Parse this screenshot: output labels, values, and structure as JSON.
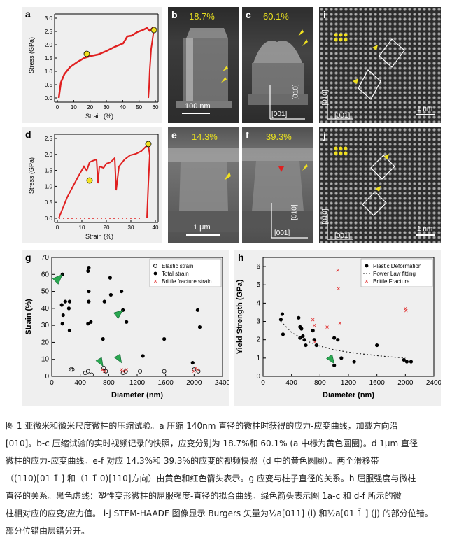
{
  "panels": {
    "a": {
      "label": "a",
      "xlabel": "Strain (%)",
      "ylabel": "Stress (GPa)",
      "xticks": [
        "0",
        "10",
        "20",
        "30",
        "40",
        "50",
        "60"
      ],
      "yticks": [
        "0.0",
        "0.5",
        "1.0",
        "1.5",
        "2.0",
        "2.5",
        "3.0"
      ]
    },
    "b": {
      "label": "b",
      "strain": "18.7%",
      "scale": "100 nm"
    },
    "c": {
      "label": "c",
      "strain": "60.1%",
      "axis_v": "[010]",
      "axis_h": "[001]"
    },
    "i": {
      "label": "i",
      "axis_v": "[010]",
      "axis_h": "[001]",
      "scale": "1 nm"
    },
    "d": {
      "label": "d",
      "xlabel": "Strain (%)",
      "ylabel": "Stress (GPa)",
      "xticks": [
        "0",
        "10",
        "20",
        "30",
        "40"
      ],
      "yticks": [
        "0.0",
        "0.5",
        "1.0",
        "1.5",
        "2.0",
        "2.5"
      ]
    },
    "e": {
      "label": "e",
      "strain": "14.3%",
      "scale": "1 μm"
    },
    "f": {
      "label": "f",
      "strain": "39.3%",
      "axis_v": "[010]",
      "axis_h": "[001]"
    },
    "j": {
      "label": "j",
      "axis_v": "[010]",
      "axis_h": "[001]",
      "scale": "1 nm"
    },
    "g": {
      "label": "g"
    },
    "h": {
      "label": "h"
    }
  },
  "chart_data": [
    {
      "id": "g",
      "type": "scatter",
      "title": "",
      "xlabel": "Diameter (nm)",
      "ylabel": "Strain (%)",
      "xlim": [
        0,
        2400
      ],
      "ylim": [
        0,
        70
      ],
      "xticks": [
        "0",
        "400",
        "800",
        "1200",
        "1600",
        "2000",
        "2400"
      ],
      "yticks": [
        "0",
        "10",
        "20",
        "30",
        "40",
        "50",
        "60",
        "70"
      ],
      "legend": {
        "position": "top-right",
        "entries": [
          "Elastic strain",
          "Total strain",
          "Brittle fracture strain"
        ]
      },
      "series": [
        {
          "name": "Total strain",
          "marker": "filled-circle",
          "points": [
            [
              150,
              60
            ],
            [
              140,
              42
            ],
            [
              160,
              36
            ],
            [
              150,
              31
            ],
            [
              190,
              44
            ],
            [
              250,
              44
            ],
            [
              240,
              40
            ],
            [
              250,
              27
            ],
            [
              510,
              62
            ],
            [
              520,
              64
            ],
            [
              520,
              50
            ],
            [
              520,
              44
            ],
            [
              510,
              31
            ],
            [
              550,
              32
            ],
            [
              720,
              22
            ],
            [
              740,
              44
            ],
            [
              820,
              58
            ],
            [
              830,
              48
            ],
            [
              980,
              50
            ],
            [
              1000,
              39
            ],
            [
              1050,
              32
            ],
            [
              1280,
              12
            ],
            [
              1580,
              22
            ],
            [
              2050,
              39
            ],
            [
              2080,
              29
            ],
            [
              1980,
              8
            ]
          ]
        },
        {
          "name": "Elastic strain",
          "marker": "open-circle",
          "points": [
            [
              270,
              4
            ],
            [
              290,
              4
            ],
            [
              470,
              2
            ],
            [
              510,
              3
            ],
            [
              560,
              1
            ],
            [
              730,
              5
            ],
            [
              760,
              3
            ],
            [
              1000,
              2
            ],
            [
              1040,
              3
            ],
            [
              1240,
              3
            ],
            [
              1580,
              3
            ],
            [
              2000,
              4
            ],
            [
              2060,
              3
            ]
          ]
        },
        {
          "name": "Brittle fracture strain",
          "marker": "x",
          "points": [
            [
              710,
              4
            ],
            [
              740,
              3
            ],
            [
              980,
              4
            ],
            [
              1000,
              3
            ],
            [
              1050,
              4
            ],
            [
              2000,
              3
            ],
            [
              2020,
              5
            ],
            [
              2050,
              4
            ]
          ]
        }
      ]
    },
    {
      "id": "h",
      "type": "scatter",
      "title": "",
      "xlabel": "Diameter (nm)",
      "ylabel": "Yield Strength (GPa)",
      "xlim": [
        0,
        2400
      ],
      "ylim": [
        0,
        6.5
      ],
      "xticks": [
        "0",
        "400",
        "800",
        "1200",
        "1600",
        "2000",
        "2400"
      ],
      "yticks": [
        "0",
        "1",
        "2",
        "3",
        "4",
        "5",
        "6"
      ],
      "legend": {
        "position": "top-right",
        "entries": [
          "Plastic Deformation",
          "Power Law fitting",
          "Brittle Fracture"
        ]
      },
      "series": [
        {
          "name": "Plastic Deformation",
          "marker": "filled-circle",
          "points": [
            [
              270,
              3.4
            ],
            [
              250,
              3.1
            ],
            [
              280,
              2.3
            ],
            [
              500,
              3.2
            ],
            [
              520,
              2.7
            ],
            [
              540,
              2.6
            ],
            [
              560,
              2.2
            ],
            [
              520,
              2.1
            ],
            [
              580,
              2.0
            ],
            [
              600,
              1.7
            ],
            [
              700,
              2.5
            ],
            [
              720,
              2.0
            ],
            [
              750,
              1.7
            ],
            [
              1000,
              2.1
            ],
            [
              1000,
              0.6
            ],
            [
              1050,
              2.0
            ],
            [
              1100,
              1.0
            ],
            [
              1280,
              0.8
            ],
            [
              1600,
              1.7
            ],
            [
              1980,
              0.9
            ],
            [
              2020,
              0.8
            ],
            [
              2080,
              0.8
            ]
          ]
        },
        {
          "name": "Brittle Fracture",
          "marker": "x",
          "points": [
            [
              700,
              3.1
            ],
            [
              720,
              2.8
            ],
            [
              730,
              1.9
            ],
            [
              900,
              2.7
            ],
            [
              1050,
              5.8
            ],
            [
              1060,
              4.8
            ],
            [
              1080,
              2.9
            ],
            [
              2000,
              3.7
            ],
            [
              2010,
              3.6
            ]
          ]
        },
        {
          "name": "Power Law fitting",
          "marker": "dotted-line",
          "points": [
            [
              250,
              3.0
            ],
            [
              400,
              2.4
            ],
            [
              600,
              1.95
            ],
            [
              800,
              1.65
            ],
            [
              1000,
              1.45
            ],
            [
              1200,
              1.32
            ],
            [
              1400,
              1.22
            ],
            [
              1600,
              1.13
            ],
            [
              1800,
              1.06
            ],
            [
              2000,
              1.0
            ]
          ]
        }
      ]
    }
  ],
  "caption": {
    "line1": "图 1 亚微米和微米尺度微柱的压缩试验。a 压缩 140nm 直径的微柱时获得的应力-应变曲线，加载方向沿",
    "line2": "[010]。b-c 压缩试验的实时视频记录的快照，应变分别为 18.7%和 60.1% (a 中标为黄色圆圈)。d 1μm 直径",
    "line3": "微柱的应力-应变曲线。e-f 对应 14.3%和 39.3%的应变的视频快照（d 中的黄色圆圈）。两个滑移带",
    "line4": "（(110)[01 1̄ ] 和（1 1̄ 0)[110]方向）由黄色和红色箭头表示。g 应变与柱子直径的关系。h 屈服强度与微柱",
    "line5": "直径的关系。黑色虚线：塑性变形微柱的屈服强度-直径的拟合曲线。绿色箭头表示图 1a-c 和 d-f 所示的微",
    "line6": "柱相对应的应变/应力值。 i-j STEM-HAADF 图像显示 Burgers 矢量为½a[011] (i) 和½a[01 1̄ ] (j) 的部分位错。",
    "line7": "部分位错由层错分开。"
  }
}
